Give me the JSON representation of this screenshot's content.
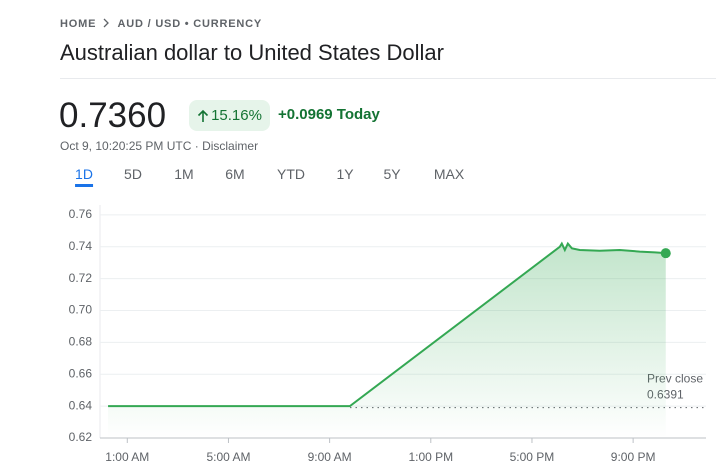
{
  "header": {
    "breadcrumb": [
      "HOME",
      "AUD / USD • CURRENCY"
    ],
    "title": "Australian dollar to United States Dollar"
  },
  "quote": {
    "price": "0.7360",
    "change_percent": "15.16%",
    "change": "+0.0969 Today",
    "timestamp": "Oct 9, 10:20:25 PM UTC ·",
    "disclaimer": "Disclaimer"
  },
  "tabs": [
    "1D",
    "5D",
    "1M",
    "6M",
    "YTD",
    "1Y",
    "5Y",
    "MAX"
  ],
  "chart_data": {
    "type": "line",
    "color": "#34a853",
    "x": [
      0.24,
      9.8,
      18.1,
      18.18,
      18.3,
      18.42,
      18.58,
      18.89,
      19.68,
      20.47,
      21.26,
      21.86,
      22.29
    ],
    "values": [
      0.64,
      0.64,
      0.74,
      0.742,
      0.738,
      0.742,
      0.739,
      0.738,
      0.7375,
      0.738,
      0.737,
      0.7365,
      0.736
    ],
    "xlim": [
      0,
      24
    ],
    "xticks": [
      {
        "value": 1,
        "label": "1:00 AM"
      },
      {
        "value": 5,
        "label": "5:00 AM"
      },
      {
        "value": 9,
        "label": "9:00 AM"
      },
      {
        "value": 13,
        "label": "1:00 PM"
      },
      {
        "value": 17,
        "label": "5:00 PM"
      },
      {
        "value": 21,
        "label": "9:00 PM"
      }
    ],
    "ylim": [
      0.62,
      0.77
    ],
    "yticks": [
      0.62,
      0.64,
      0.66,
      0.68,
      {
        "value": 0.7,
        "label": "0.70"
      },
      0.72,
      0.74,
      0.76
    ],
    "grid": true,
    "reference_line": {
      "label": "Prev close",
      "value": 0.6391
    }
  }
}
